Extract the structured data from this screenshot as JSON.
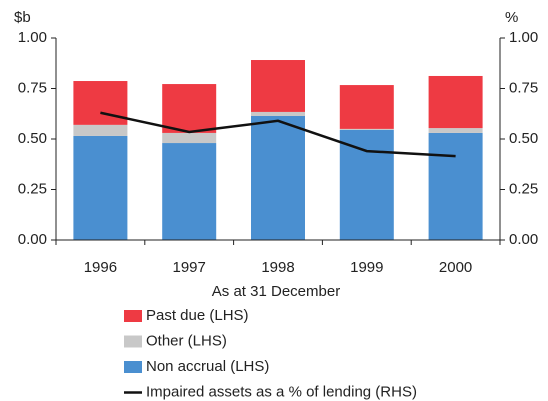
{
  "chart_data": {
    "type": "bar",
    "y_label": "$b",
    "y2_label": "%",
    "x_label": "As at 31 December",
    "categories": [
      "1996",
      "1997",
      "1998",
      "1999",
      "2000"
    ],
    "series": [
      {
        "name": "Non accrual (LHS)",
        "color": "#4a8fd0",
        "values": [
          0.515,
          0.48,
          0.614,
          0.545,
          0.53
        ]
      },
      {
        "name": "Other (LHS)",
        "color": "#c8c8c8",
        "values": [
          0.055,
          0.05,
          0.02,
          0.005,
          0.024
        ]
      },
      {
        "name": "Past due (LHS)",
        "color": "#ee3a43",
        "values": [
          0.217,
          0.242,
          0.257,
          0.217,
          0.258
        ]
      },
      {
        "name": "Impaired assets as a % of lending (RHS)",
        "color": "#111111",
        "type": "line",
        "axis": "y2",
        "values": [
          0.63,
          0.535,
          0.59,
          0.44,
          0.415
        ]
      }
    ],
    "stacked": true,
    "ylim": [
      0,
      1
    ],
    "yticks": [
      {
        "value": 0,
        "label": "0.00"
      },
      0.25,
      {
        "value": 0.5,
        "label": "0.50"
      },
      0.75,
      {
        "value": 1,
        "label": "1.00"
      }
    ],
    "y2lim": [
      0,
      1
    ],
    "y2ticks": [
      {
        "value": 0,
        "label": "0.00"
      },
      0.25,
      {
        "value": 0.5,
        "label": "0.50"
      },
      0.75,
      {
        "value": 1,
        "label": "1.00"
      }
    ],
    "grid": false
  }
}
